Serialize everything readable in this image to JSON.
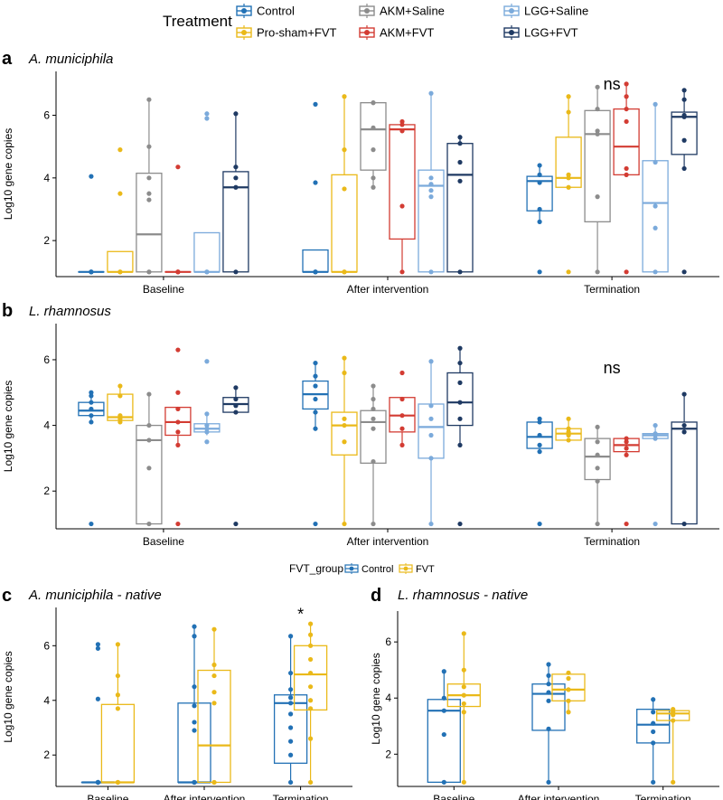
{
  "legend": {
    "title": "Treatment",
    "items": [
      {
        "name": "Control",
        "color": "#2271B5"
      },
      {
        "name": "Pro-sham+FVT",
        "color": "#EAB919"
      },
      {
        "name": "AKM+Saline",
        "color": "#8C8C8C"
      },
      {
        "name": "AKM+FVT",
        "color": "#D33C33"
      },
      {
        "name": "LGG+Saline",
        "color": "#7BAADB"
      },
      {
        "name": "LGG+FVT",
        "color": "#1F3A63"
      }
    ]
  },
  "legend_small": {
    "title": "FVT_group",
    "items": [
      {
        "name": "Control",
        "color": "#2271B5"
      },
      {
        "name": "FVT",
        "color": "#EAB919"
      }
    ]
  },
  "chart_data": [
    {
      "type": "box",
      "panel": "a",
      "title": "A. municiphila",
      "ylabel": "Log10 gene copies",
      "ylim": [
        0.85,
        7.4
      ],
      "yticks": [
        2,
        4,
        6
      ],
      "categories": [
        "Baseline",
        "After intervention",
        "Termination"
      ],
      "annotations": [
        {
          "category": 2,
          "y": 7.0,
          "text": "ns"
        }
      ],
      "series": [
        {
          "name": "Control",
          "boxes": [
            {
              "q1": 1,
              "median": 1,
              "q3": 1,
              "low": 1,
              "high": 1,
              "points": [
                1,
                1,
                1,
                1,
                1,
                4.05
              ]
            },
            {
              "q1": 1,
              "median": 1,
              "q3": 1.7,
              "low": 1,
              "high": 1.7,
              "points": [
                1,
                1,
                1,
                1,
                3.85,
                6.35
              ]
            },
            {
              "q1": 2.95,
              "median": 3.9,
              "q3": 4.05,
              "low": 2.6,
              "high": 4.4,
              "points": [
                1,
                2.6,
                3.0,
                3.85,
                4.1,
                4.4
              ]
            }
          ]
        },
        {
          "name": "Pro-sham+FVT",
          "boxes": [
            {
              "q1": 1,
              "median": 1,
              "q3": 1.65,
              "low": 1,
              "high": 1.65,
              "points": [
                1,
                1,
                1,
                3.5,
                4.9
              ]
            },
            {
              "q1": 1,
              "median": 1,
              "q3": 4.1,
              "low": 1,
              "high": 6.6,
              "points": [
                1,
                1,
                1,
                3.65,
                4.9,
                6.6
              ]
            },
            {
              "q1": 3.7,
              "median": 4.0,
              "q3": 5.3,
              "low": 3.7,
              "high": 6.6,
              "points": [
                1,
                3.7,
                4.0,
                4.1,
                6.1,
                6.6
              ]
            }
          ]
        },
        {
          "name": "AKM+Saline",
          "boxes": [
            {
              "q1": 1,
              "median": 2.2,
              "q3": 4.15,
              "low": 1,
              "high": 6.5,
              "points": [
                1,
                1,
                3.3,
                3.5,
                4.0,
                5.0,
                6.5
              ]
            },
            {
              "q1": 4.25,
              "median": 5.55,
              "q3": 6.4,
              "low": 3.7,
              "high": 6.4,
              "points": [
                3.7,
                4.0,
                4.9,
                5.6,
                6.4,
                6.4
              ]
            },
            {
              "q1": 2.6,
              "median": 5.4,
              "q3": 6.15,
              "low": 1,
              "high": 6.9,
              "points": [
                1,
                3.4,
                5.4,
                5.5,
                6.2,
                6.9
              ]
            }
          ]
        },
        {
          "name": "AKM+FVT",
          "boxes": [
            {
              "q1": 1,
              "median": 1,
              "q3": 1,
              "low": 1,
              "high": 1,
              "points": [
                1,
                1,
                1,
                1,
                1,
                4.35
              ]
            },
            {
              "q1": 2.05,
              "median": 5.55,
              "q3": 5.7,
              "low": 1,
              "high": 5.8,
              "points": [
                1,
                3.1,
                5.5,
                5.7,
                5.8
              ]
            },
            {
              "q1": 4.1,
              "median": 5.0,
              "q3": 6.2,
              "low": 4.1,
              "high": 7.0,
              "points": [
                1,
                4.1,
                4.3,
                5.8,
                6.2,
                6.6,
                7.0
              ]
            }
          ]
        },
        {
          "name": "LGG+Saline",
          "boxes": [
            {
              "q1": 1,
              "median": 1,
              "q3": 2.25,
              "low": 1,
              "high": 2.25,
              "points": [
                1,
                1,
                1,
                5.9,
                6.05
              ]
            },
            {
              "q1": 1,
              "median": 3.75,
              "q3": 4.25,
              "low": 1,
              "high": 6.7,
              "points": [
                1,
                3.4,
                3.6,
                3.8,
                4.0,
                6.7
              ]
            },
            {
              "q1": 1,
              "median": 3.2,
              "q3": 4.55,
              "low": 1,
              "high": 6.35,
              "points": [
                1,
                2.4,
                3.1,
                4.5,
                6.35
              ]
            }
          ]
        },
        {
          "name": "LGG+FVT",
          "boxes": [
            {
              "q1": 1,
              "median": 3.7,
              "q3": 4.2,
              "low": 1,
              "high": 6.05,
              "points": [
                1,
                3.7,
                4.0,
                4.35,
                6.05
              ]
            },
            {
              "q1": 1,
              "median": 4.1,
              "q3": 5.1,
              "low": 1,
              "high": 5.3,
              "points": [
                1,
                3.9,
                4.5,
                5.1,
                5.3
              ]
            },
            {
              "q1": 4.75,
              "median": 5.95,
              "q3": 6.1,
              "low": 4.3,
              "high": 6.8,
              "points": [
                1,
                4.3,
                5.2,
                5.95,
                6.0,
                6.5,
                6.8
              ]
            }
          ]
        }
      ]
    },
    {
      "type": "box",
      "panel": "b",
      "title": "L. rhamnosus",
      "ylabel": "Log10 gene copies",
      "ylim": [
        0.85,
        7.1
      ],
      "yticks": [
        2,
        4,
        6
      ],
      "categories": [
        "Baseline",
        "After intervention",
        "Termination"
      ],
      "annotations": [
        {
          "category": 2,
          "y": 5.75,
          "text": "ns"
        }
      ],
      "series": [
        {
          "name": "Control",
          "boxes": [
            {
              "q1": 4.3,
              "median": 4.45,
              "q3": 4.7,
              "low": 4.1,
              "high": 5.0,
              "points": [
                1,
                4.1,
                4.3,
                4.5,
                4.7,
                4.9,
                5.0
              ]
            },
            {
              "q1": 4.5,
              "median": 4.95,
              "q3": 5.35,
              "low": 3.9,
              "high": 5.9,
              "points": [
                1,
                3.9,
                4.4,
                4.8,
                5.2,
                5.5,
                5.9
              ]
            },
            {
              "q1": 3.3,
              "median": 3.65,
              "q3": 4.1,
              "low": 3.2,
              "high": 4.2,
              "points": [
                1,
                3.2,
                3.4,
                3.7,
                4.1,
                4.2
              ]
            }
          ]
        },
        {
          "name": "Pro-sham+FVT",
          "boxes": [
            {
              "q1": 4.15,
              "median": 4.25,
              "q3": 4.95,
              "low": 4.1,
              "high": 5.2,
              "points": [
                4.1,
                4.2,
                4.3,
                4.9,
                5.2
              ]
            },
            {
              "q1": 3.1,
              "median": 4.0,
              "q3": 4.4,
              "low": 1,
              "high": 6.05,
              "points": [
                1,
                3.5,
                4.0,
                4.2,
                5.6,
                6.05
              ]
            },
            {
              "q1": 3.55,
              "median": 3.75,
              "q3": 3.9,
              "low": 3.55,
              "high": 4.2,
              "points": [
                3.55,
                3.7,
                3.8,
                3.9,
                4.2
              ]
            }
          ]
        },
        {
          "name": "AKM+Saline",
          "boxes": [
            {
              "q1": 1,
              "median": 3.55,
              "q3": 4.0,
              "low": 1,
              "high": 4.95,
              "points": [
                1,
                2.7,
                3.55,
                4.0,
                4.95
              ]
            },
            {
              "q1": 2.85,
              "median": 4.1,
              "q3": 4.45,
              "low": 1,
              "high": 5.2,
              "points": [
                1,
                2.9,
                3.9,
                4.2,
                4.5,
                4.8,
                5.2
              ]
            },
            {
              "q1": 2.35,
              "median": 3.05,
              "q3": 3.6,
              "low": 1,
              "high": 3.95,
              "points": [
                1,
                2.3,
                2.7,
                3.1,
                3.5,
                3.95
              ]
            }
          ]
        },
        {
          "name": "AKM+FVT",
          "boxes": [
            {
              "q1": 3.7,
              "median": 4.1,
              "q3": 4.55,
              "low": 3.4,
              "high": 4.55,
              "points": [
                1,
                3.4,
                3.8,
                4.1,
                4.5,
                5.0,
                6.3
              ]
            },
            {
              "q1": 3.8,
              "median": 4.3,
              "q3": 4.85,
              "low": 3.4,
              "high": 4.85,
              "points": [
                3.4,
                3.9,
                4.3,
                4.8,
                5.6
              ]
            },
            {
              "q1": 3.2,
              "median": 3.4,
              "q3": 3.6,
              "low": 3.1,
              "high": 3.6,
              "points": [
                1,
                3.1,
                3.3,
                3.5,
                3.6
              ]
            }
          ]
        },
        {
          "name": "LGG+Saline",
          "boxes": [
            {
              "q1": 3.8,
              "median": 3.9,
              "q3": 4.05,
              "low": 3.7,
              "high": 4.35,
              "points": [
                3.5,
                3.8,
                3.9,
                4.0,
                4.35,
                5.95
              ]
            },
            {
              "q1": 3.0,
              "median": 3.95,
              "q3": 4.65,
              "low": 1,
              "high": 5.95,
              "points": [
                1,
                3.0,
                3.7,
                4.2,
                4.6,
                5.95
              ]
            },
            {
              "q1": 3.6,
              "median": 3.7,
              "q3": 3.75,
              "low": 3.6,
              "high": 4.0,
              "points": [
                1,
                3.6,
                3.7,
                3.75,
                4.0
              ]
            }
          ]
        },
        {
          "name": "LGG+FVT",
          "boxes": [
            {
              "q1": 4.4,
              "median": 4.65,
              "q3": 4.85,
              "low": 4.4,
              "high": 5.15,
              "points": [
                1,
                4.4,
                4.6,
                4.8,
                5.15
              ]
            },
            {
              "q1": 4.0,
              "median": 4.7,
              "q3": 5.6,
              "low": 3.4,
              "high": 6.35,
              "points": [
                1,
                3.4,
                4.2,
                4.7,
                5.3,
                5.9,
                6.35
              ]
            },
            {
              "q1": 1,
              "median": 3.9,
              "q3": 4.1,
              "low": 1,
              "high": 4.95,
              "points": [
                1,
                3.8,
                4.0,
                4.95
              ]
            }
          ]
        }
      ]
    },
    {
      "type": "box",
      "panel": "c",
      "title": "A. municiphila - native",
      "ylabel": "Log10 gene copies",
      "ylim": [
        0.85,
        7.4
      ],
      "yticks": [
        2,
        4,
        6
      ],
      "categories": [
        "Baseline",
        "After intervention",
        "Termination"
      ],
      "annotations": [
        {
          "category": 2,
          "y": 7.15,
          "text": "*"
        }
      ],
      "series": [
        {
          "name": "Control",
          "boxes": [
            {
              "q1": 1,
              "median": 1,
              "q3": 1,
              "low": 1,
              "high": 1,
              "points": [
                1,
                1,
                1,
                1,
                1,
                1,
                1,
                4.05,
                5.9,
                6.05
              ]
            },
            {
              "q1": 1,
              "median": 1,
              "q3": 3.9,
              "low": 1,
              "high": 6.7,
              "points": [
                1,
                1,
                1,
                2.9,
                3.2,
                3.8,
                4.5,
                6.35,
                6.7
              ]
            },
            {
              "q1": 1.7,
              "median": 3.9,
              "q3": 4.2,
              "low": 1,
              "high": 6.35,
              "points": [
                1,
                2.0,
                2.5,
                3.0,
                3.5,
                3.9,
                4.1,
                4.4,
                5.0,
                6.35
              ]
            }
          ]
        },
        {
          "name": "FVT",
          "boxes": [
            {
              "q1": 1,
              "median": 1,
              "q3": 3.85,
              "low": 1,
              "high": 6.05,
              "points": [
                1,
                1,
                1,
                3.7,
                4.2,
                4.9,
                6.05
              ]
            },
            {
              "q1": 1,
              "median": 2.35,
              "q3": 5.1,
              "low": 1,
              "high": 6.6,
              "points": [
                1,
                1,
                3.9,
                4.3,
                4.9,
                5.3,
                6.6
              ]
            },
            {
              "q1": 3.65,
              "median": 4.95,
              "q3": 6.0,
              "low": 1,
              "high": 6.8,
              "points": [
                1,
                2.6,
                3.7,
                4.0,
                4.5,
                5.0,
                5.5,
                6.0,
                6.4,
                6.8
              ]
            }
          ]
        }
      ]
    },
    {
      "type": "box",
      "panel": "d",
      "title": "L. rhamnosus - native",
      "ylabel": "Log10 gene copies",
      "ylim": [
        0.85,
        7.1
      ],
      "yticks": [
        2,
        4,
        6
      ],
      "categories": [
        "Baseline",
        "After intervention",
        "Termination"
      ],
      "annotations": [],
      "series": [
        {
          "name": "Control",
          "boxes": [
            {
              "q1": 1,
              "median": 3.55,
              "q3": 3.95,
              "low": 1,
              "high": 4.95,
              "points": [
                1,
                2.7,
                3.55,
                4.0,
                4.95
              ]
            },
            {
              "q1": 2.85,
              "median": 4.15,
              "q3": 4.5,
              "low": 1,
              "high": 5.2,
              "points": [
                1,
                2.9,
                3.9,
                4.2,
                4.5,
                4.8,
                5.2
              ]
            },
            {
              "q1": 2.4,
              "median": 3.05,
              "q3": 3.6,
              "low": 1,
              "high": 3.95,
              "points": [
                1,
                2.4,
                2.8,
                3.1,
                3.5,
                3.95
              ]
            }
          ]
        },
        {
          "name": "FVT",
          "boxes": [
            {
              "q1": 3.7,
              "median": 4.1,
              "q3": 4.5,
              "low": 1,
              "high": 6.3,
              "points": [
                1,
                3.5,
                3.8,
                4.1,
                4.4,
                5.0,
                6.3
              ]
            },
            {
              "q1": 3.9,
              "median": 4.3,
              "q3": 4.85,
              "low": 3.5,
              "high": 4.85,
              "points": [
                3.5,
                3.9,
                4.3,
                4.7,
                4.9
              ]
            },
            {
              "q1": 3.2,
              "median": 3.45,
              "q3": 3.55,
              "low": 1,
              "high": 3.6,
              "points": [
                1,
                3.2,
                3.4,
                3.5,
                3.6
              ]
            }
          ]
        }
      ]
    }
  ]
}
